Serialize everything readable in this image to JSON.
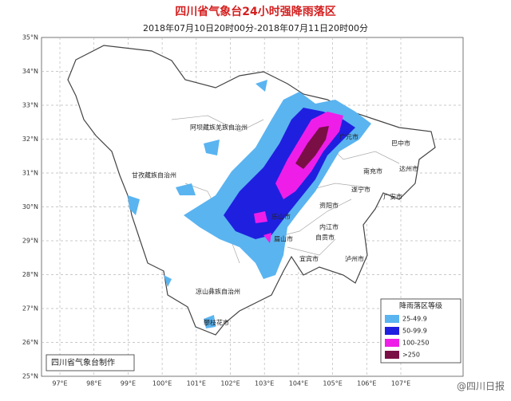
{
  "title": "四川省气象台24小时强降雨落区",
  "subtitle": "2018年07月10日20时00分-2018年07月11日20时00分",
  "latitude_labels": [
    "35°N",
    "34°N",
    "33°N",
    "32°N",
    "31°N",
    "30°N",
    "29°N",
    "28°N",
    "27°N",
    "26°N",
    "25°N"
  ],
  "longitude_labels": [
    "97°E",
    "98°E",
    "99°E",
    "100°E",
    "101°E",
    "102°E",
    "103°E",
    "104°E",
    "105°E",
    "106°E",
    "107°E"
  ],
  "regions": [
    "阿坝藏族羌族自治州",
    "甘孜藏族自治州",
    "凉山彝族自治州",
    "攀枝花市",
    "广元市",
    "巴中市",
    "达州市",
    "南充市",
    "遂宁市",
    "广安市",
    "资阳市",
    "乐山市",
    "内江市",
    "自贡市",
    "宜宾市",
    "泸州市",
    "眉山市"
  ],
  "legend": {
    "title": "降雨落区等级",
    "items": [
      {
        "label": "25-49.9",
        "color": "#5ab4f0"
      },
      {
        "label": "50-99.9",
        "color": "#1f1fe0"
      },
      {
        "label": "100-250",
        "color": "#ee1ee8"
      },
      {
        "label": ">250",
        "color": "#7a0f45"
      }
    ]
  },
  "credit": "四川省气象台制作",
  "watermark": "@四川日报"
}
